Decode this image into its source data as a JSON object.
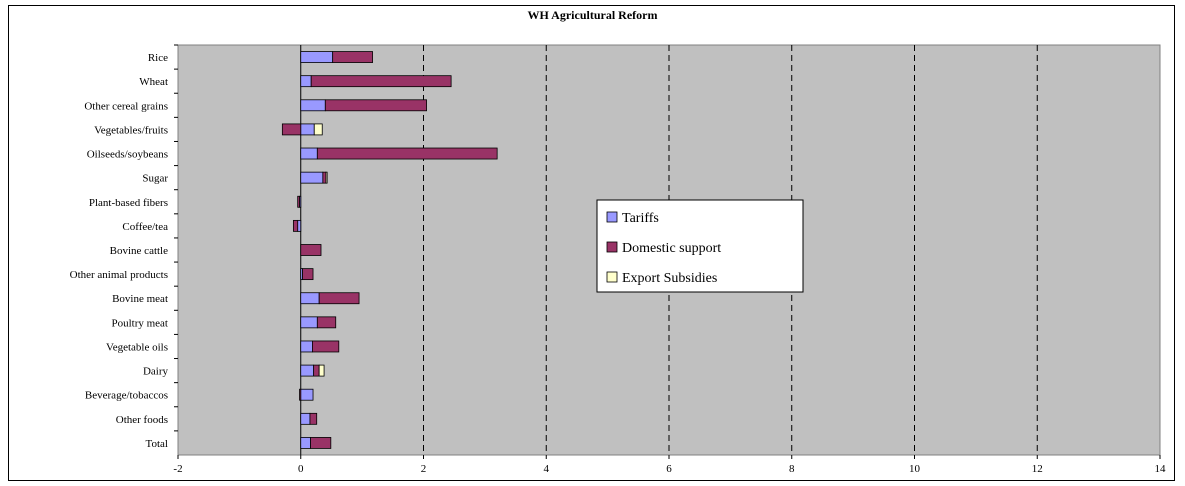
{
  "chart_data": {
    "type": "bar",
    "orientation": "horizontal",
    "stacked": true,
    "title": "WH Agricultural Reform",
    "categories": [
      "Rice",
      "Wheat",
      "Other cereal grains",
      "Vegetables/fruits",
      "Oilseeds/soybeans",
      "Sugar",
      "Plant-based fibers",
      "Coffee/tea",
      "Bovine cattle",
      "Other animal products",
      "Bovine meat",
      "Poultry meat",
      "Vegetable oils",
      "Dairy",
      "Beverage/tobaccos",
      "Other foods",
      "Total"
    ],
    "series": [
      {
        "name": "Tariffs",
        "color": "#9999ff",
        "values": [
          0.52,
          0.17,
          0.4,
          0.22,
          0.27,
          0.36,
          -0.02,
          -0.05,
          0.0,
          0.03,
          0.3,
          0.27,
          0.19,
          0.21,
          0.2,
          0.15,
          0.16
        ]
      },
      {
        "name": "Domestic support",
        "color": "#993366",
        "values": [
          0.65,
          2.28,
          1.65,
          -0.3,
          2.93,
          0.05,
          -0.03,
          -0.07,
          0.33,
          0.17,
          0.65,
          0.3,
          0.43,
          0.09,
          -0.02,
          0.11,
          0.33
        ]
      },
      {
        "name": "Export Subsidies",
        "color": "#ffffcc",
        "values": [
          0.0,
          0.0,
          0.0,
          0.13,
          0.0,
          0.02,
          0.0,
          0.0,
          0.0,
          0.0,
          0.0,
          0.0,
          0.0,
          0.08,
          0.0,
          0.0,
          0.0
        ]
      }
    ],
    "xlim": [
      -2,
      14
    ],
    "xticks": [
      -2,
      0,
      2,
      4,
      6,
      8,
      10,
      12,
      14
    ],
    "xlabel": "",
    "ylabel": "",
    "grid": "vertical dashed",
    "plot_background": "#c0c0c0",
    "legend_position": "center-right"
  }
}
